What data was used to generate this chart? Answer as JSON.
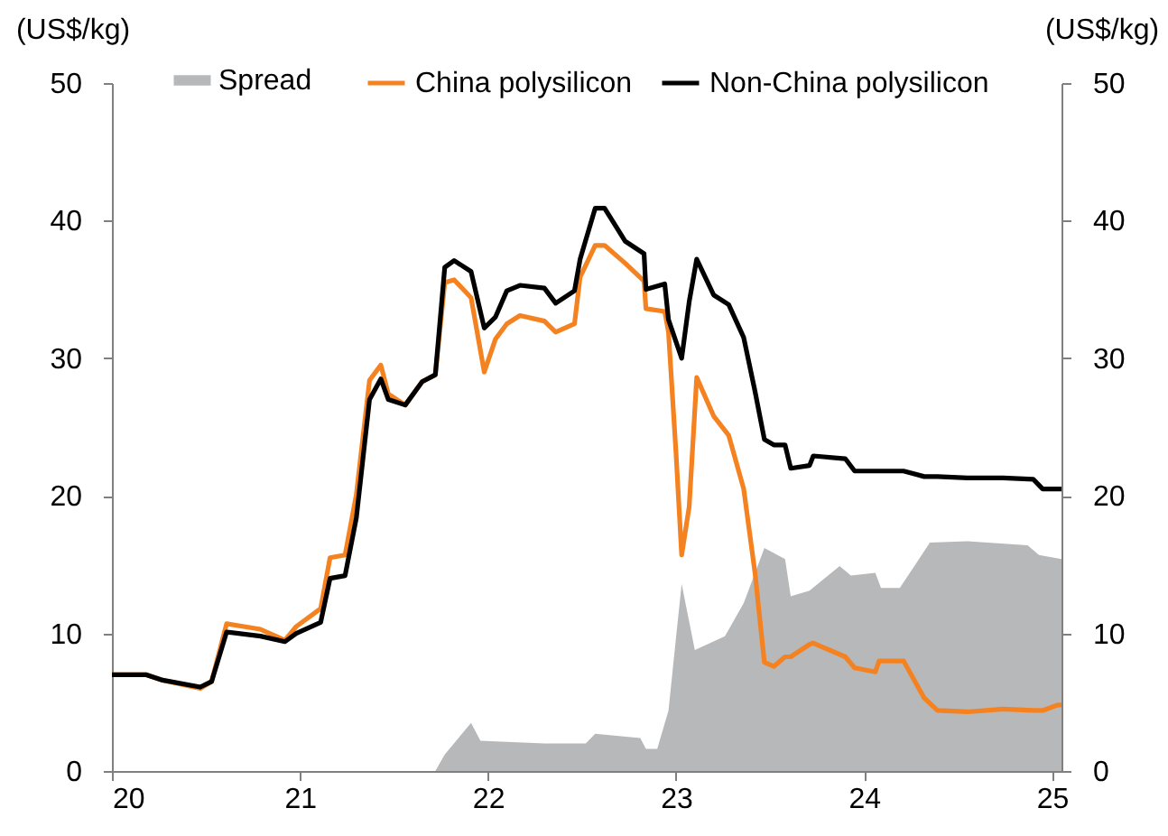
{
  "chart_data": {
    "type": "line",
    "ylabel": "(US$/kg)",
    "y2label": "(US$/kg)",
    "xlim": [
      20,
      25.05
    ],
    "xticks": [
      {
        "value": 20,
        "label": "20"
      },
      {
        "value": 21,
        "label": "21"
      },
      {
        "value": 22,
        "label": "22"
      },
      {
        "value": 23,
        "label": "23"
      },
      {
        "value": 24,
        "label": "24"
      },
      {
        "value": 25,
        "label": "25"
      }
    ],
    "ylim": [
      0,
      50
    ],
    "yticks": [
      0,
      10,
      20,
      30,
      40,
      50
    ],
    "y2lim": [
      0,
      50
    ],
    "y2ticks": [
      0,
      10,
      20,
      30,
      40,
      50
    ],
    "grid": false,
    "legend": "top",
    "line_style": "solid",
    "marker": "none",
    "series": [
      {
        "name": "Spread",
        "type": "area",
        "color": "#b7b8ba",
        "x": [
          21.72,
          21.77,
          21.91,
          21.96,
          22.3,
          22.52,
          22.57,
          22.81,
          22.84,
          22.9,
          22.96,
          23.0,
          23.03,
          23.1,
          23.26,
          23.36,
          23.47,
          23.58,
          23.61,
          23.71,
          23.87,
          23.93,
          24.06,
          24.09,
          24.19,
          24.35,
          24.55,
          24.87,
          24.93,
          25.05
        ],
        "values": [
          0,
          1.2,
          3.5,
          2.2,
          2.0,
          2.0,
          2.7,
          2.4,
          1.6,
          1.6,
          4.4,
          9.7,
          13.6,
          8.8,
          9.8,
          12.2,
          16.2,
          15.4,
          12.7,
          13.1,
          14.9,
          14.2,
          14.4,
          13.3,
          13.3,
          16.6,
          16.7,
          16.4,
          15.7,
          15.4
        ]
      },
      {
        "name": "China polysilicon",
        "color": "#f58220",
        "x": [
          20.0,
          20.18,
          20.27,
          20.47,
          20.53,
          20.61,
          20.79,
          20.92,
          20.98,
          21.11,
          21.16,
          21.24,
          21.3,
          21.37,
          21.43,
          21.47,
          21.56,
          21.65,
          21.72,
          21.77,
          21.82,
          21.91,
          21.98,
          22.04,
          22.1,
          22.17,
          22.3,
          22.36,
          22.46,
          22.49,
          22.57,
          22.62,
          22.73,
          22.83,
          22.84,
          22.94,
          22.96,
          23.0,
          23.03,
          23.07,
          23.11,
          23.2,
          23.28,
          23.36,
          23.42,
          23.47,
          23.52,
          23.58,
          23.61,
          23.71,
          23.73,
          23.9,
          23.95,
          24.06,
          24.08,
          24.21,
          24.32,
          24.39,
          24.55,
          24.74,
          24.9,
          24.95,
          25.03,
          25.05
        ],
        "values": [
          7.0,
          7.0,
          6.6,
          6.0,
          6.5,
          10.7,
          10.3,
          9.5,
          10.5,
          11.8,
          15.5,
          15.7,
          20.1,
          28.4,
          29.5,
          27.4,
          26.6,
          28.3,
          28.8,
          35.5,
          35.7,
          34.4,
          29.0,
          31.4,
          32.5,
          33.1,
          32.7,
          31.9,
          32.5,
          35.9,
          38.2,
          38.2,
          36.9,
          35.6,
          33.6,
          33.4,
          31.9,
          23.1,
          15.7,
          19.2,
          28.6,
          25.8,
          24.4,
          20.5,
          14.4,
          7.9,
          7.6,
          8.3,
          8.3,
          9.2,
          9.3,
          8.3,
          7.5,
          7.2,
          8.0,
          8.0,
          5.3,
          4.4,
          4.3,
          4.5,
          4.4,
          4.4,
          4.8,
          4.8
        ]
      },
      {
        "name": "Non-China polysilicon",
        "color": "#000000",
        "x": [
          20.0,
          20.18,
          20.27,
          20.47,
          20.53,
          20.61,
          20.79,
          20.92,
          20.98,
          21.11,
          21.16,
          21.24,
          21.3,
          21.37,
          21.43,
          21.47,
          21.56,
          21.65,
          21.72,
          21.77,
          21.82,
          21.91,
          21.98,
          22.04,
          22.1,
          22.17,
          22.3,
          22.36,
          22.46,
          22.49,
          22.57,
          22.62,
          22.73,
          22.83,
          22.84,
          22.94,
          22.96,
          23.03,
          23.07,
          23.11,
          23.2,
          23.28,
          23.36,
          23.42,
          23.47,
          23.52,
          23.58,
          23.61,
          23.71,
          23.73,
          23.9,
          23.95,
          24.06,
          24.21,
          24.32,
          24.39,
          24.55,
          24.74,
          24.9,
          24.95,
          25.03,
          25.05
        ],
        "values": [
          7.0,
          7.0,
          6.6,
          6.1,
          6.5,
          10.1,
          9.8,
          9.4,
          10.0,
          10.8,
          14.0,
          14.2,
          18.4,
          27.0,
          28.5,
          27.0,
          26.6,
          28.3,
          28.8,
          36.6,
          37.1,
          36.3,
          32.2,
          33.0,
          34.9,
          35.3,
          35.1,
          34.0,
          34.9,
          37.2,
          40.9,
          40.9,
          38.5,
          37.6,
          35.0,
          35.4,
          32.8,
          30.0,
          34.1,
          37.2,
          34.6,
          33.9,
          31.5,
          27.6,
          24.1,
          23.7,
          23.7,
          22.0,
          22.2,
          22.9,
          22.7,
          21.8,
          21.8,
          21.8,
          21.4,
          21.4,
          21.3,
          21.3,
          21.2,
          20.5,
          20.5,
          20.5
        ]
      }
    ]
  }
}
